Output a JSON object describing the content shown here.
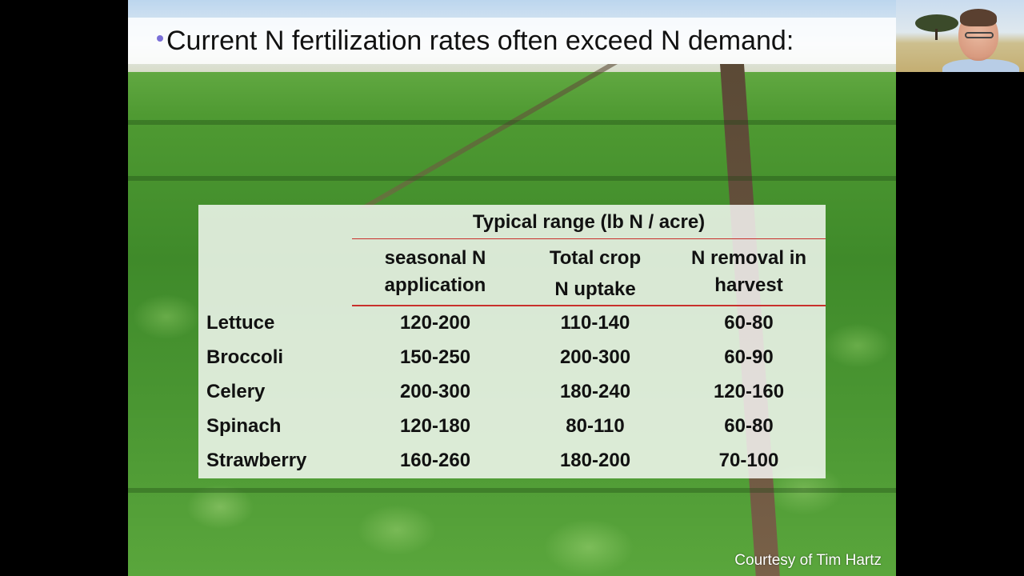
{
  "slide": {
    "title": "Current N fertilization rates often exceed N demand:",
    "credit": "Courtesy of Tim Hartz"
  },
  "table": {
    "group_header": "Typical range (lb N / acre)",
    "columns": [
      {
        "line1": "seasonal N",
        "line2": "application"
      },
      {
        "line1": "Total crop",
        "line2": "N uptake"
      },
      {
        "line1": "N removal in",
        "line2": "harvest"
      }
    ],
    "rows": [
      {
        "crop": "Lettuce",
        "values": [
          "120-200",
          "110-140",
          "60-80"
        ]
      },
      {
        "crop": "Broccoli",
        "values": [
          "150-250",
          "200-300",
          "60-90"
        ]
      },
      {
        "crop": "Celery",
        "values": [
          "200-300",
          "180-240",
          "120-160"
        ]
      },
      {
        "crop": "Spinach",
        "values": [
          "120-180",
          "80-110",
          "60-80"
        ]
      },
      {
        "crop": "Strawberry",
        "values": [
          "160-260",
          "180-200",
          "70-100"
        ]
      }
    ]
  },
  "colors": {
    "rule_red": "#c9302c",
    "bullet": "#7a6fd8"
  }
}
